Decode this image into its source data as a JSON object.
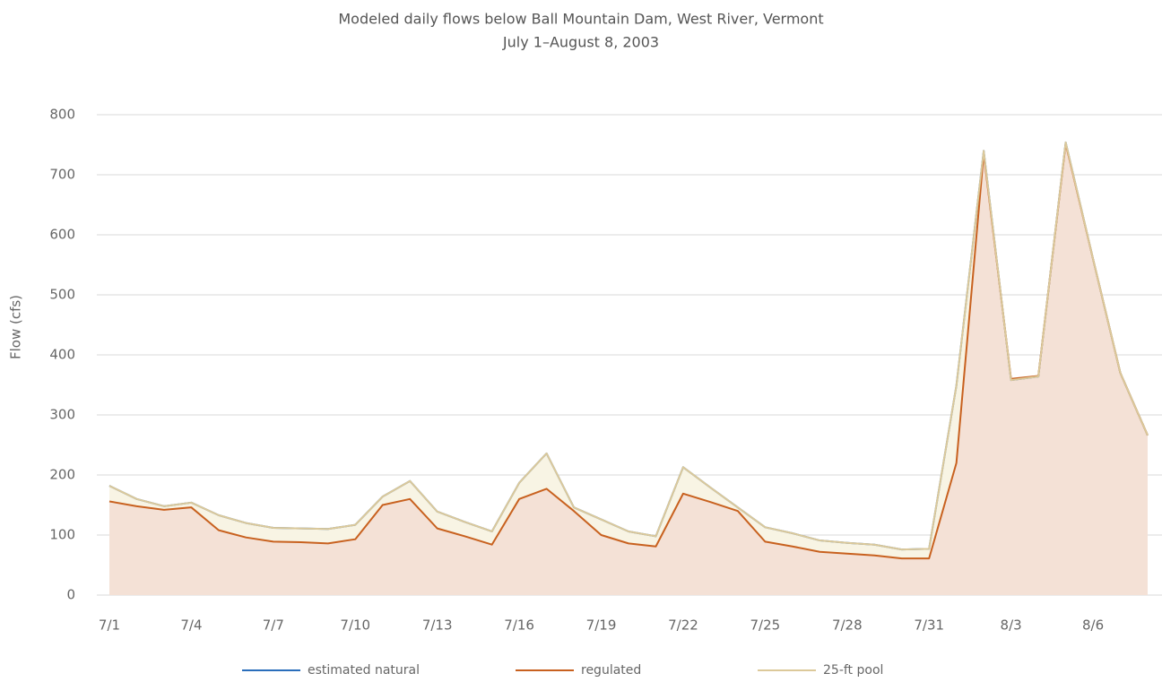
{
  "chart_data": {
    "type": "line",
    "title": "Modeled daily flows below Ball Mountain Dam, West River, Vermont",
    "subtitle": "July 1–August 8, 2003",
    "y_label": "Flow (cfs)",
    "categories": [
      "7/1",
      null,
      null,
      "7/4",
      null,
      null,
      "7/7",
      null,
      null,
      "7/10",
      null,
      null,
      "7/13",
      null,
      null,
      "7/16",
      null,
      null,
      "7/19",
      null,
      null,
      "7/22",
      null,
      null,
      "7/25",
      null,
      null,
      "7/28",
      null,
      null,
      "7/31",
      null,
      null,
      "8/3",
      null,
      null,
      "8/6",
      null,
      null
    ],
    "series": [
      {
        "name": "estimated natural",
        "color": "#2a6ebb",
        "values": [
          182,
          160,
          148,
          154,
          133,
          120,
          112,
          111,
          110,
          117,
          164,
          190,
          139,
          122,
          106,
          187,
          236,
          146,
          126,
          106,
          98,
          213,
          179,
          146,
          113,
          103,
          91,
          87,
          84,
          76,
          77,
          349,
          740,
          358,
          364,
          754,
          560,
          370,
          266
        ]
      },
      {
        "name": "regulated",
        "color": "#c8611f",
        "fill": "#f4e1d6",
        "values": [
          156,
          148,
          142,
          146,
          108,
          96,
          89,
          88,
          86,
          93,
          150,
          160,
          111,
          98,
          84,
          160,
          177,
          140,
          100,
          86,
          81,
          169,
          155,
          140,
          89,
          81,
          72,
          69,
          66,
          61,
          61,
          220,
          735,
          360,
          365,
          752,
          560,
          370,
          266
        ]
      },
      {
        "name": "25-ft pool",
        "color": "#dcc99a",
        "fill": "#f8f4e4",
        "values": [
          182,
          160,
          148,
          154,
          133,
          120,
          112,
          111,
          110,
          117,
          164,
          190,
          139,
          122,
          106,
          187,
          236,
          146,
          126,
          106,
          98,
          213,
          179,
          146,
          113,
          103,
          91,
          87,
          84,
          76,
          77,
          349,
          740,
          358,
          364,
          754,
          560,
          370,
          266
        ]
      }
    ],
    "ylim": [
      0,
      800
    ],
    "yticks": [
      0,
      100,
      200,
      300,
      400,
      500,
      600,
      700,
      800
    ],
    "grid": true
  }
}
